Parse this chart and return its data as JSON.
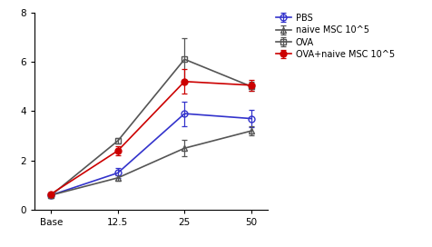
{
  "x_positions": [
    0,
    1,
    2,
    3
  ],
  "x_labels": [
    "Base",
    "12.5",
    "25",
    "50"
  ],
  "series": [
    {
      "label": "PBS",
      "color": "#3333cc",
      "marker": "o",
      "marker_face": "none",
      "linewidth": 1.2,
      "y": [
        0.6,
        1.5,
        3.9,
        3.7
      ],
      "yerr": [
        0.05,
        0.2,
        0.5,
        0.35
      ]
    },
    {
      "label": "naive MSC 10^5",
      "color": "#555555",
      "marker": "^",
      "marker_face": "none",
      "linewidth": 1.2,
      "y": [
        0.6,
        1.3,
        2.5,
        3.2
      ],
      "yerr": [
        0.05,
        0.12,
        0.32,
        0.18
      ]
    },
    {
      "label": "OVA",
      "color": "#555555",
      "marker": "s",
      "marker_face": "none",
      "linewidth": 1.2,
      "y": [
        0.6,
        2.8,
        6.1,
        5.0
      ],
      "yerr": [
        0.05,
        0.12,
        0.85,
        0.18
      ]
    },
    {
      "label": "OVA+naive MSC 10^5",
      "color": "#cc0000",
      "marker": "o",
      "marker_face": "#cc0000",
      "linewidth": 1.2,
      "y": [
        0.65,
        2.4,
        5.2,
        5.05
      ],
      "yerr": [
        0.05,
        0.18,
        0.5,
        0.22
      ]
    }
  ],
  "ylim": [
    0,
    8
  ],
  "yticks": [
    0,
    2,
    4,
    6,
    8
  ],
  "background_color": "#ffffff",
  "figsize": [
    4.76,
    2.72
  ],
  "dpi": 100
}
